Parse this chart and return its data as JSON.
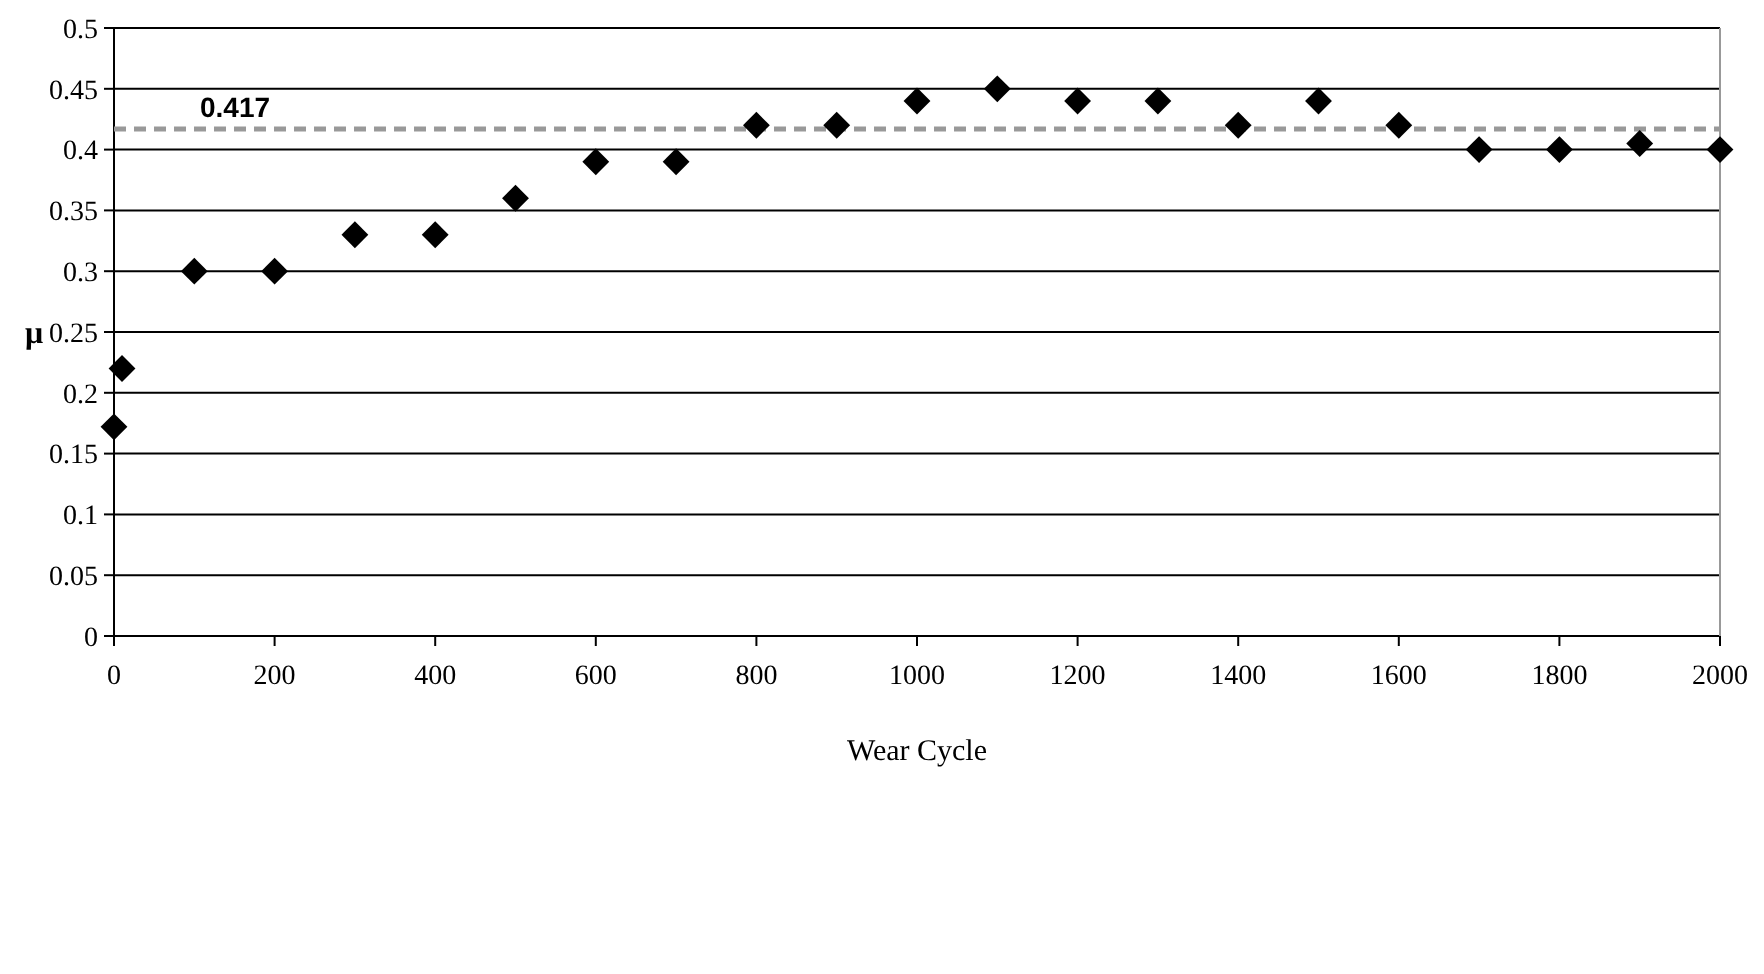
{
  "chart_data": {
    "type": "scatter",
    "xlabel": "Wear Cycle",
    "ylabel": "μ",
    "x": [
      0,
      10,
      100,
      200,
      300,
      400,
      500,
      600,
      700,
      800,
      900,
      1000,
      1100,
      1200,
      1300,
      1400,
      1500,
      1600,
      1700,
      1800,
      1900,
      2000
    ],
    "values": [
      0.172,
      0.22,
      0.3,
      0.3,
      0.33,
      0.33,
      0.36,
      0.39,
      0.39,
      0.42,
      0.42,
      0.44,
      0.45,
      0.44,
      0.44,
      0.42,
      0.44,
      0.42,
      0.4,
      0.4,
      0.405,
      0.4
    ],
    "color": "#000000",
    "marker": "diamond",
    "xlim": [
      0,
      2000
    ],
    "xticks": [
      0,
      200,
      400,
      600,
      800,
      1000,
      1200,
      1400,
      1600,
      1800,
      2000
    ],
    "ylim": [
      0,
      0.5
    ],
    "yticks": [
      0,
      0.05,
      0.1,
      0.15,
      0.2,
      0.25,
      0.3,
      0.35,
      0.4,
      0.45,
      0.5
    ],
    "grid": "y",
    "ref_lines": [
      {
        "axis": "y",
        "value": 0.417,
        "label": "0.417",
        "color": "#999999",
        "line_style": "dashed"
      }
    ]
  }
}
